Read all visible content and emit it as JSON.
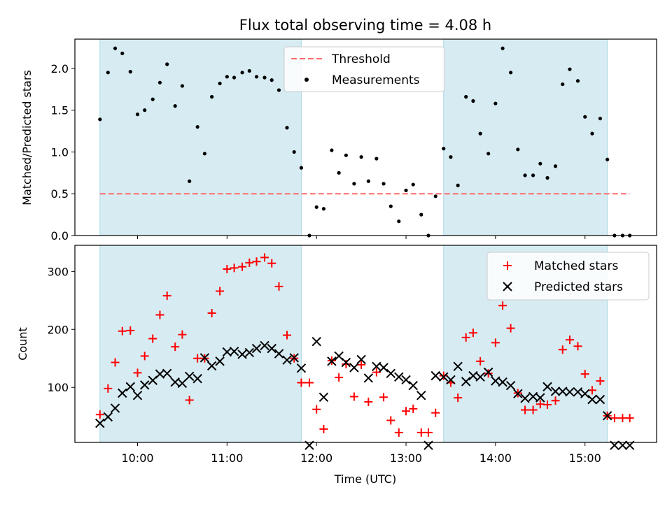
{
  "chart_data": {
    "type": "scatter",
    "title": "Flux total observing time = 4.08 h",
    "xlabel": "Time (UTC)",
    "xlim": [
      9.3,
      15.8
    ],
    "xticks": [
      {
        "value": 10,
        "label": "10:00"
      },
      {
        "value": 11,
        "label": "11:00"
      },
      {
        "value": 12,
        "label": "12:00"
      },
      {
        "value": 13,
        "label": "13:00"
      },
      {
        "value": 14,
        "label": "14:00"
      },
      {
        "value": 15,
        "label": "15:00"
      }
    ],
    "shaded_intervals": [
      [
        9.58,
        11.83
      ],
      [
        13.42,
        15.25
      ]
    ],
    "shade_color": "#add8e6",
    "panels": [
      {
        "ylabel": "Matched/Predicted stars",
        "ylim": [
          0,
          2.35
        ],
        "yticks": [
          {
            "value": 0.0,
            "label": "0.0"
          },
          {
            "value": 0.5,
            "label": "0.5"
          },
          {
            "value": 1.0,
            "label": "1.0"
          },
          {
            "value": 1.5,
            "label": "1.5"
          },
          {
            "value": 2.0,
            "label": "2.0"
          }
        ],
        "legend_position": "top-center",
        "lines": [
          {
            "name": "Threshold",
            "color": "#ff6b6b",
            "style": "dashed",
            "x": [
              9.58,
              15.5
            ],
            "y": [
              0.5,
              0.5
            ]
          }
        ],
        "series": [
          {
            "name": "Measurements",
            "marker": "dot",
            "color": "#000000",
            "points": [
              [
                9.58,
                1.39
              ],
              [
                9.67,
                1.95
              ],
              [
                9.75,
                2.24
              ],
              [
                9.83,
                2.18
              ],
              [
                9.92,
                1.96
              ],
              [
                10.0,
                1.45
              ],
              [
                10.08,
                1.5
              ],
              [
                10.17,
                1.63
              ],
              [
                10.25,
                1.83
              ],
              [
                10.33,
                2.05
              ],
              [
                10.42,
                1.55
              ],
              [
                10.5,
                1.79
              ],
              [
                10.58,
                0.65
              ],
              [
                10.67,
                1.3
              ],
              [
                10.75,
                0.98
              ],
              [
                10.83,
                1.66
              ],
              [
                10.92,
                1.82
              ],
              [
                11.0,
                1.9
              ],
              [
                11.08,
                1.89
              ],
              [
                11.17,
                1.95
              ],
              [
                11.25,
                1.97
              ],
              [
                11.33,
                1.9
              ],
              [
                11.42,
                1.89
              ],
              [
                11.5,
                1.86
              ],
              [
                11.58,
                1.74
              ],
              [
                11.67,
                1.29
              ],
              [
                11.75,
                1.0
              ],
              [
                11.83,
                0.81
              ],
              [
                11.92,
                0.0
              ],
              [
                12.0,
                0.34
              ],
              [
                12.08,
                0.32
              ],
              [
                12.17,
                1.02
              ],
              [
                12.25,
                0.75
              ],
              [
                12.33,
                0.96
              ],
              [
                12.42,
                0.62
              ],
              [
                12.5,
                0.94
              ],
              [
                12.58,
                0.65
              ],
              [
                12.67,
                0.92
              ],
              [
                12.75,
                0.62
              ],
              [
                12.83,
                0.35
              ],
              [
                12.92,
                0.17
              ],
              [
                13.0,
                0.54
              ],
              [
                13.08,
                0.61
              ],
              [
                13.17,
                0.25
              ],
              [
                13.25,
                0.0
              ],
              [
                13.33,
                0.47
              ],
              [
                13.42,
                1.04
              ],
              [
                13.5,
                0.94
              ],
              [
                13.58,
                0.6
              ],
              [
                13.67,
                1.66
              ],
              [
                13.75,
                1.61
              ],
              [
                13.83,
                1.22
              ],
              [
                13.92,
                0.98
              ],
              [
                14.0,
                1.58
              ],
              [
                14.08,
                2.24
              ],
              [
                14.17,
                1.95
              ],
              [
                14.25,
                1.03
              ],
              [
                14.33,
                0.72
              ],
              [
                14.42,
                0.72
              ],
              [
                14.5,
                0.86
              ],
              [
                14.58,
                0.69
              ],
              [
                14.67,
                0.83
              ],
              [
                14.75,
                1.81
              ],
              [
                14.83,
                1.99
              ],
              [
                14.92,
                1.85
              ],
              [
                15.0,
                1.42
              ],
              [
                15.08,
                1.22
              ],
              [
                15.17,
                1.4
              ],
              [
                15.25,
                0.91
              ],
              [
                15.33,
                0.0
              ],
              [
                15.42,
                0.0
              ],
              [
                15.5,
                0.0
              ]
            ]
          }
        ]
      },
      {
        "ylabel": "Count",
        "ylim": [
          5,
          345
        ],
        "yticks": [
          {
            "value": 100,
            "label": "100"
          },
          {
            "value": 200,
            "label": "200"
          },
          {
            "value": 300,
            "label": "300"
          }
        ],
        "legend_position": "top-right",
        "series": [
          {
            "name": "Matched stars",
            "marker": "plus",
            "color": "#ff0000",
            "points": [
              [
                9.58,
                53
              ],
              [
                9.67,
                98
              ],
              [
                9.75,
                143
              ],
              [
                9.83,
                197
              ],
              [
                9.92,
                198
              ],
              [
                10.0,
                125
              ],
              [
                10.08,
                154
              ],
              [
                10.17,
                184
              ],
              [
                10.25,
                225
              ],
              [
                10.33,
                258
              ],
              [
                10.42,
                170
              ],
              [
                10.5,
                191
              ],
              [
                10.58,
                78
              ],
              [
                10.67,
                150
              ],
              [
                10.75,
                150
              ],
              [
                10.83,
                228
              ],
              [
                10.92,
                266
              ],
              [
                11.0,
                304
              ],
              [
                11.08,
                306
              ],
              [
                11.17,
                308
              ],
              [
                11.25,
                315
              ],
              [
                11.33,
                317
              ],
              [
                11.42,
                324
              ],
              [
                11.5,
                314
              ],
              [
                11.58,
                274
              ],
              [
                11.67,
                190
              ],
              [
                11.75,
                150
              ],
              [
                11.83,
                108
              ],
              [
                11.92,
                108
              ],
              [
                12.0,
                62
              ],
              [
                12.08,
                28
              ],
              [
                12.17,
                146
              ],
              [
                12.25,
                117
              ],
              [
                12.33,
                140
              ],
              [
                12.42,
                84
              ],
              [
                12.5,
                139
              ],
              [
                12.58,
                75
              ],
              [
                12.67,
                126
              ],
              [
                12.75,
                83
              ],
              [
                12.83,
                43
              ],
              [
                12.92,
                22
              ],
              [
                13.0,
                59
              ],
              [
                13.08,
                63
              ],
              [
                13.17,
                22
              ],
              [
                13.25,
                22
              ],
              [
                13.33,
                56
              ],
              [
                13.42,
                120
              ],
              [
                13.5,
                108
              ],
              [
                13.58,
                82
              ],
              [
                13.67,
                186
              ],
              [
                13.75,
                194
              ],
              [
                13.83,
                145
              ],
              [
                13.92,
                124
              ],
              [
                14.0,
                177
              ],
              [
                14.08,
                241
              ],
              [
                14.17,
                202
              ],
              [
                14.25,
                90
              ],
              [
                14.33,
                61
              ],
              [
                14.42,
                61
              ],
              [
                14.5,
                71
              ],
              [
                14.58,
                70
              ],
              [
                14.67,
                77
              ],
              [
                14.75,
                165
              ],
              [
                14.83,
                182
              ],
              [
                14.92,
                171
              ],
              [
                15.0,
                123
              ],
              [
                15.08,
                95
              ],
              [
                15.17,
                111
              ],
              [
                15.25,
                51
              ],
              [
                15.33,
                47
              ],
              [
                15.42,
                47
              ],
              [
                15.5,
                47
              ]
            ]
          },
          {
            "name": "Predicted stars",
            "marker": "x",
            "color": "#000000",
            "points": [
              [
                9.58,
                38
              ],
              [
                9.67,
                49
              ],
              [
                9.75,
                64
              ],
              [
                9.83,
                90
              ],
              [
                9.92,
                101
              ],
              [
                10.0,
                86
              ],
              [
                10.08,
                104
              ],
              [
                10.17,
                112
              ],
              [
                10.25,
                123
              ],
              [
                10.33,
                124
              ],
              [
                10.42,
                109
              ],
              [
                10.5,
                107
              ],
              [
                10.58,
                119
              ],
              [
                10.67,
                115
              ],
              [
                10.75,
                151
              ],
              [
                10.83,
                137
              ],
              [
                10.92,
                145
              ],
              [
                11.0,
                161
              ],
              [
                11.08,
                162
              ],
              [
                11.17,
                157
              ],
              [
                11.25,
                160
              ],
              [
                11.33,
                167
              ],
              [
                11.42,
                172
              ],
              [
                11.5,
                167
              ],
              [
                11.58,
                158
              ],
              [
                11.67,
                147
              ],
              [
                11.75,
                151
              ],
              [
                11.83,
                133
              ],
              [
                11.92,
                0
              ],
              [
                12.0,
                179
              ],
              [
                12.08,
                83
              ],
              [
                12.17,
                145
              ],
              [
                12.25,
                154
              ],
              [
                12.33,
                143
              ],
              [
                12.42,
                134
              ],
              [
                12.5,
                148
              ],
              [
                12.58,
                116
              ],
              [
                12.67,
                136
              ],
              [
                12.75,
                134
              ],
              [
                12.83,
                124
              ],
              [
                12.92,
                118
              ],
              [
                13.0,
                113
              ],
              [
                13.08,
                103
              ],
              [
                13.17,
                86
              ],
              [
                13.25,
                0
              ],
              [
                13.33,
                120
              ],
              [
                13.42,
                118
              ],
              [
                13.5,
                113
              ],
              [
                13.58,
                136
              ],
              [
                13.67,
                110
              ],
              [
                13.75,
                120
              ],
              [
                13.83,
                118
              ],
              [
                13.92,
                126
              ],
              [
                14.0,
                111
              ],
              [
                14.08,
                109
              ],
              [
                14.17,
                103
              ],
              [
                14.25,
                89
              ],
              [
                14.33,
                81
              ],
              [
                14.42,
                84
              ],
              [
                14.5,
                82
              ],
              [
                14.58,
                101
              ],
              [
                14.67,
                93
              ],
              [
                14.75,
                93
              ],
              [
                14.83,
                92
              ],
              [
                14.92,
                92
              ],
              [
                15.0,
                89
              ],
              [
                15.08,
                79
              ],
              [
                15.17,
                79
              ],
              [
                15.25,
                51
              ],
              [
                15.33,
                0
              ],
              [
                15.42,
                0
              ],
              [
                15.5,
                0
              ]
            ]
          }
        ]
      }
    ]
  }
}
